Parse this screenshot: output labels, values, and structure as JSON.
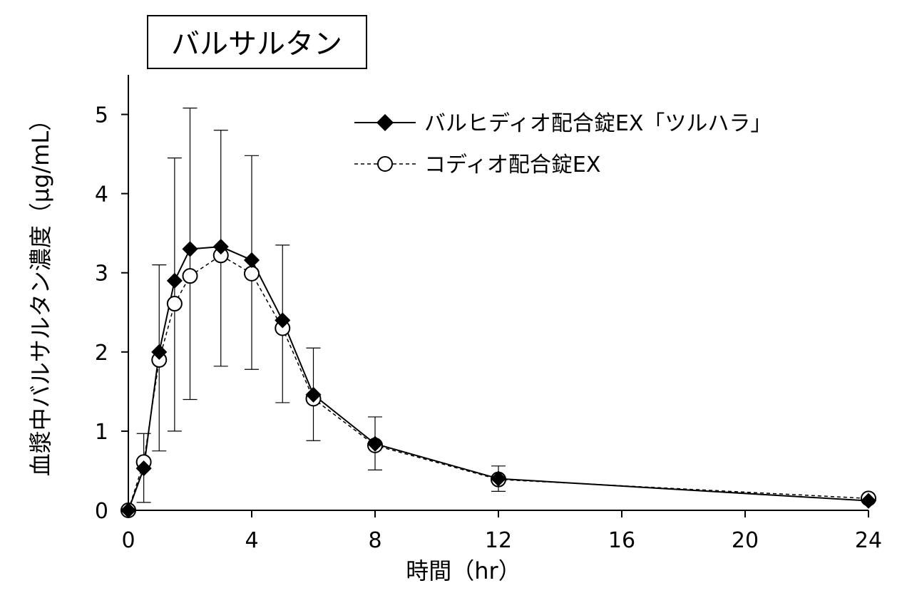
{
  "chart_data": {
    "type": "line",
    "title": "バルサルタン",
    "xlabel": "時間（hr）",
    "ylabel": "血漿中バルサルタン濃度（μg/mL）",
    "xlim": [
      0,
      24
    ],
    "ylim": [
      0,
      5.5
    ],
    "xticks": [
      "0",
      "4",
      "8",
      "12",
      "16",
      "20",
      "24"
    ],
    "yticks": [
      "0",
      "1",
      "2",
      "3",
      "4",
      "5"
    ],
    "grid": false,
    "legend_position": "top-right",
    "x": [
      0,
      0.5,
      1,
      1.5,
      2,
      3,
      4,
      5,
      6,
      8,
      12,
      24
    ],
    "series": [
      {
        "name": "バルヒディオ配合錠EX「ツルハラ」",
        "marker": "filled-diamond",
        "line": "solid",
        "values": [
          0,
          0.53,
          2.0,
          2.9,
          3.3,
          3.33,
          3.16,
          2.4,
          1.46,
          0.84,
          0.4,
          0.12
        ],
        "error_lower": [
          0,
          0.1,
          0.75,
          1.0,
          1.4,
          1.82,
          1.78,
          1.36,
          0.88,
          0.51,
          0.24,
          0
        ],
        "error_upper": [
          0,
          0.97,
          3.1,
          4.45,
          5.08,
          4.8,
          4.48,
          3.35,
          2.05,
          1.18,
          0.56,
          0
        ]
      },
      {
        "name": "コディオ配合錠EX",
        "marker": "open-circle",
        "line": "dashed",
        "values": [
          0,
          0.61,
          1.9,
          2.61,
          2.96,
          3.22,
          2.99,
          2.3,
          1.41,
          0.82,
          0.39,
          0.15
        ]
      }
    ]
  }
}
